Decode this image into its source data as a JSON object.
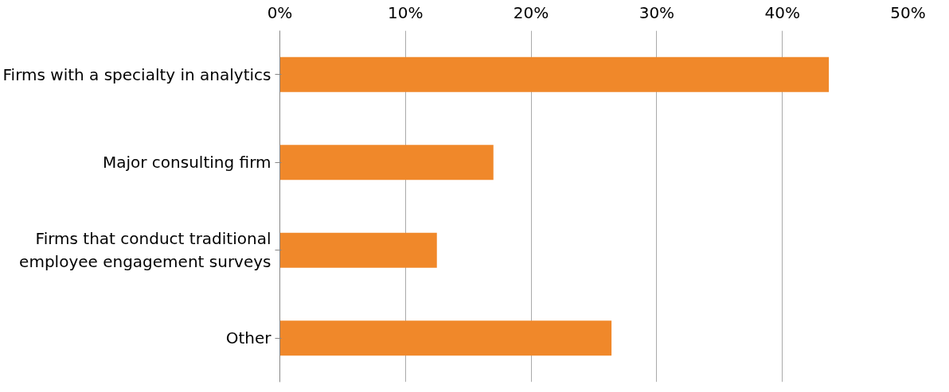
{
  "chart_data": {
    "type": "bar",
    "orientation": "horizontal",
    "categories": [
      "Firms with a specialty in analytics",
      "Major consulting firm",
      "Firms that conduct traditional\nemployee engagement surveys",
      "Other"
    ],
    "values": [
      43.7,
      17.0,
      12.5,
      26.4
    ],
    "color": "#f0882a",
    "xlim": [
      0,
      50
    ],
    "xticks": [
      {
        "value": 0,
        "label": "0%"
      },
      {
        "value": 10,
        "label": "10%"
      },
      {
        "value": 20,
        "label": "20%"
      },
      {
        "value": 30,
        "label": "30%"
      },
      {
        "value": 40,
        "label": "40%"
      },
      {
        "value": 50,
        "label": "50%"
      }
    ],
    "grid": "x"
  }
}
